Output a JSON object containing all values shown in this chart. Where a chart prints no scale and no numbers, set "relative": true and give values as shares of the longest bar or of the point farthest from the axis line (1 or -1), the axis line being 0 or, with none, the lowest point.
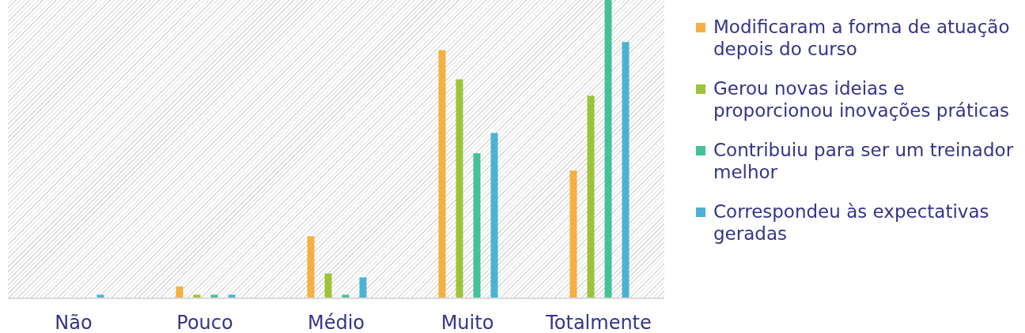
{
  "chart_data": {
    "type": "bar",
    "relative": true,
    "legend": "right",
    "categories": [
      "Não",
      "Pouco",
      "Médio",
      "Muito",
      "Totalmente"
    ],
    "series": [
      {
        "name": "Modificaram a forma de atuação depois do curso",
        "color": "#f5b041",
        "values": [
          0,
          0.04,
          0.208,
          0.832,
          0.428
        ]
      },
      {
        "name": "Gerou novas ideias e proporcionou inovações práticas",
        "color": "#9dc33b",
        "values": [
          0,
          0.012,
          0.083,
          0.734,
          0.679
        ]
      },
      {
        "name": "Contribuiu para ser um treinador melhor",
        "color": "#45c19a",
        "values": [
          0,
          0.012,
          0.012,
          0.486,
          1
        ]
      },
      {
        "name": "Correspondeu às expectativas geradas",
        "color": "#4ab3d4",
        "values": [
          0.012,
          0.012,
          0.07,
          0.554,
          0.859
        ]
      }
    ]
  }
}
